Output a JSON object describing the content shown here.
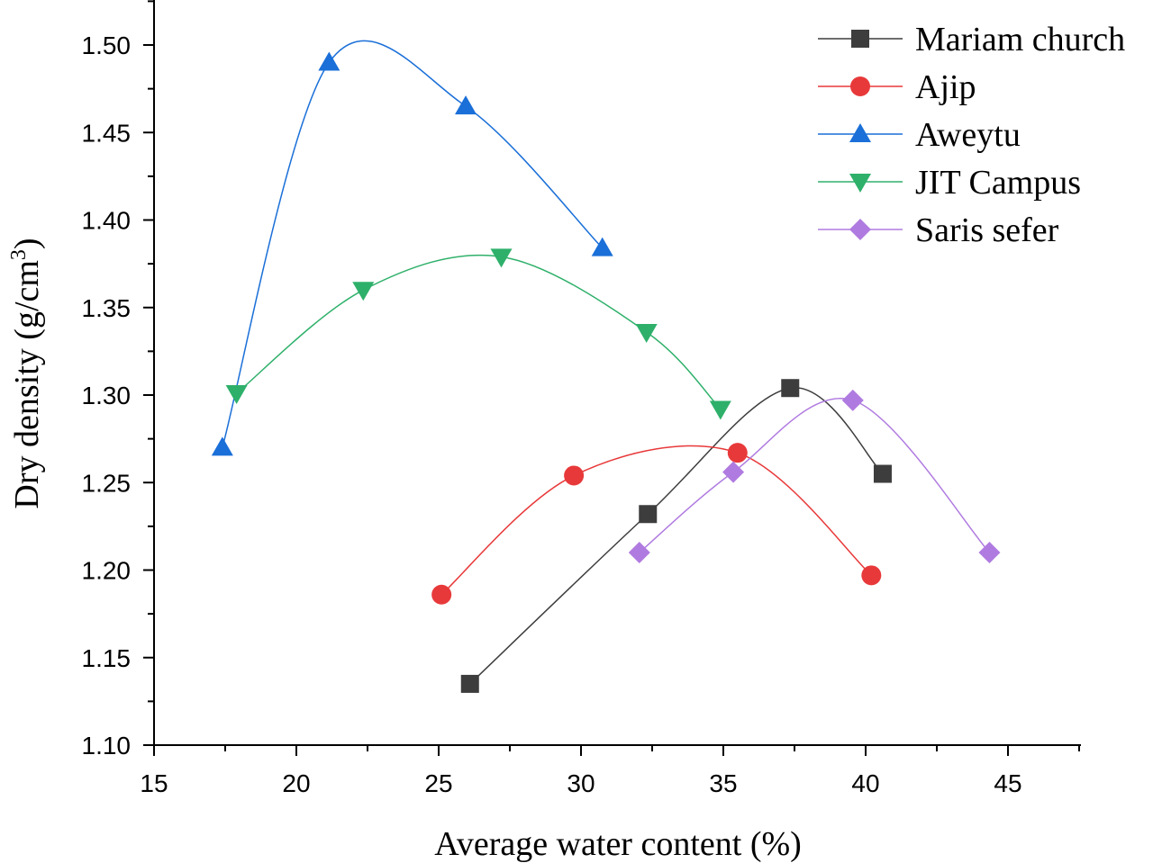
{
  "chart_data": {
    "type": "line",
    "xlabel": "Average water content (%)",
    "ylabel": "Dry density (g/cm",
    "ylabel_sup": "3",
    "ylabel_end": ")",
    "xlim": [
      15,
      47.5
    ],
    "ylim": [
      1.1,
      1.525
    ],
    "xticks": [
      "15",
      "20",
      "25",
      "30",
      "35",
      "40",
      "45"
    ],
    "yticks": [
      "1.10",
      "1.15",
      "1.20",
      "1.25",
      "1.30",
      "1.35",
      "1.40",
      "1.45",
      "1.50"
    ],
    "grid": false,
    "legend": "top-right",
    "series": [
      {
        "name": "Mariam church",
        "color": "#3d3d3d",
        "marker": "square",
        "x": [
          26.1,
          32.35,
          37.35,
          40.6
        ],
        "y": [
          1.135,
          1.232,
          1.304,
          1.255
        ]
      },
      {
        "name": "Ajip",
        "color": "#e8393a",
        "marker": "circle",
        "x": [
          25.1,
          29.75,
          35.5,
          40.2
        ],
        "y": [
          1.186,
          1.254,
          1.267,
          1.197
        ]
      },
      {
        "name": "Aweytu",
        "color": "#1a6fd8",
        "marker": "triangle-up",
        "x": [
          17.4,
          21.15,
          25.95,
          30.75
        ],
        "y": [
          1.27,
          1.49,
          1.465,
          1.384
        ]
      },
      {
        "name": "JIT Campus",
        "color": "#2eb06a",
        "marker": "triangle-down",
        "x": [
          17.9,
          22.35,
          27.2,
          32.3,
          34.9
        ],
        "y": [
          1.301,
          1.36,
          1.379,
          1.336,
          1.292
        ]
      },
      {
        "name": "Saris sefer",
        "color": "#b07be0",
        "marker": "diamond",
        "x": [
          32.05,
          35.35,
          39.55,
          44.35
        ],
        "y": [
          1.21,
          1.256,
          1.297,
          1.21
        ]
      }
    ]
  }
}
